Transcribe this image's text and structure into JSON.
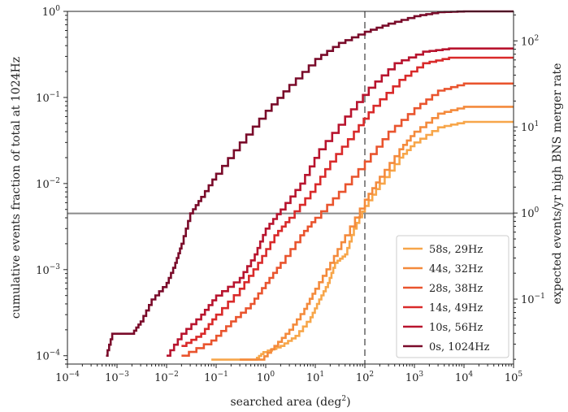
{
  "chart_data": {
    "type": "line",
    "title": "",
    "xlabel_main": "searched area (deg",
    "xlabel_exp": "2",
    "xlabel_tail": ")",
    "ylabel": "cumulative events fraction of total at 1024Hz",
    "ylabel_right": "expected events/yr high BNS merger rate",
    "xscale": "log",
    "yscale": "log",
    "xlim": [
      0.0001,
      100000
    ],
    "ylim": [
      8e-05,
      1
    ],
    "ylim_right": [
      0.0176,
      220
    ],
    "x_ticks": [
      {
        "value": 0.0001,
        "base": "10",
        "exp": "−4"
      },
      {
        "value": 0.001,
        "base": "10",
        "exp": "−3"
      },
      {
        "value": 0.01,
        "base": "10",
        "exp": "−2"
      },
      {
        "value": 0.1,
        "base": "10",
        "exp": "−1"
      },
      {
        "value": 1,
        "base": "10",
        "exp": "0"
      },
      {
        "value": 10,
        "base": "10",
        "exp": "1"
      },
      {
        "value": 100,
        "base": "10",
        "exp": "2"
      },
      {
        "value": 1000,
        "base": "10",
        "exp": "3"
      },
      {
        "value": 10000,
        "base": "10",
        "exp": "4"
      },
      {
        "value": 100000,
        "base": "10",
        "exp": "5"
      }
    ],
    "y_ticks": [
      {
        "value": 0.0001,
        "base": "10",
        "exp": "−4"
      },
      {
        "value": 0.001,
        "base": "10",
        "exp": "−3"
      },
      {
        "value": 0.01,
        "base": "10",
        "exp": "−2"
      },
      {
        "value": 0.1,
        "base": "10",
        "exp": "−1"
      },
      {
        "value": 1,
        "base": "10",
        "exp": "0"
      }
    ],
    "y_right_ticks": [
      {
        "value": 0.1,
        "base": "10",
        "exp": "−1"
      },
      {
        "value": 1,
        "base": "10",
        "exp": "0"
      },
      {
        "value": 10,
        "base": "10",
        "exp": "1"
      },
      {
        "value": 100,
        "base": "10",
        "exp": "2"
      }
    ],
    "reference_lines": {
      "horizontal_y": 0.0045,
      "vertical_x": 100
    },
    "legend_position": "lower-right",
    "series": [
      {
        "name": "58s, 29Hz",
        "color": "#f7a64a",
        "points": [
          [
            0.08,
            9e-05
          ],
          [
            0.3,
            9e-05
          ],
          [
            0.6,
            9e-05
          ],
          [
            0.9,
            0.00011
          ],
          [
            2,
            0.00013
          ],
          [
            4,
            0.00017
          ],
          [
            8,
            0.00028
          ],
          [
            12,
            0.00045
          ],
          [
            18,
            0.0007
          ],
          [
            25,
            0.0012
          ],
          [
            40,
            0.0015
          ],
          [
            60,
            0.003
          ],
          [
            100,
            0.0055
          ],
          [
            200,
            0.01
          ],
          [
            500,
            0.02
          ],
          [
            1000,
            0.03
          ],
          [
            3000,
            0.045
          ],
          [
            10000,
            0.052
          ],
          [
            100000,
            0.052
          ]
        ]
      },
      {
        "name": "44s, 32Hz",
        "color": "#f48a3c",
        "points": [
          [
            0.3,
            9e-05
          ],
          [
            0.8,
            9e-05
          ],
          [
            1.5,
            0.00013
          ],
          [
            3,
            0.0002
          ],
          [
            6,
            0.00035
          ],
          [
            10,
            0.0006
          ],
          [
            20,
            0.0012
          ],
          [
            40,
            0.0025
          ],
          [
            100,
            0.0065
          ],
          [
            200,
            0.012
          ],
          [
            500,
            0.025
          ],
          [
            1000,
            0.04
          ],
          [
            3000,
            0.065
          ],
          [
            10000,
            0.078
          ],
          [
            100000,
            0.078
          ]
        ]
      },
      {
        "name": "28s, 38Hz",
        "color": "#e9542e",
        "points": [
          [
            0.02,
            0.0001
          ],
          [
            0.08,
            0.00015
          ],
          [
            0.2,
            0.00025
          ],
          [
            0.5,
            0.0004
          ],
          [
            1,
            0.0007
          ],
          [
            2,
            0.0012
          ],
          [
            5,
            0.0025
          ],
          [
            10,
            0.004
          ],
          [
            30,
            0.008
          ],
          [
            100,
            0.018
          ],
          [
            300,
            0.04
          ],
          [
            1000,
            0.075
          ],
          [
            3000,
            0.12
          ],
          [
            10000,
            0.145
          ],
          [
            100000,
            0.145
          ]
        ]
      },
      {
        "name": "14s, 49Hz",
        "color": "#d92a2a",
        "points": [
          [
            0.02,
            0.00013
          ],
          [
            0.05,
            0.00018
          ],
          [
            0.1,
            0.0003
          ],
          [
            0.3,
            0.0006
          ],
          [
            0.7,
            0.0012
          ],
          [
            1.5,
            0.0025
          ],
          [
            3,
            0.004
          ],
          [
            8,
            0.008
          ],
          [
            20,
            0.018
          ],
          [
            60,
            0.04
          ],
          [
            150,
            0.08
          ],
          [
            500,
            0.16
          ],
          [
            1500,
            0.25
          ],
          [
            5000,
            0.29
          ],
          [
            100000,
            0.29
          ]
        ]
      },
      {
        "name": "10s, 56Hz",
        "color": "#b8142e",
        "points": [
          [
            0.01,
            0.0001
          ],
          [
            0.02,
            0.00018
          ],
          [
            0.05,
            0.0003
          ],
          [
            0.1,
            0.0005
          ],
          [
            0.3,
            0.0008
          ],
          [
            0.6,
            0.0015
          ],
          [
            1,
            0.003
          ],
          [
            2,
            0.005
          ],
          [
            5,
            0.01
          ],
          [
            12,
            0.025
          ],
          [
            40,
            0.06
          ],
          [
            120,
            0.13
          ],
          [
            400,
            0.25
          ],
          [
            1500,
            0.34
          ],
          [
            5000,
            0.37
          ],
          [
            100000,
            0.37
          ]
        ]
      },
      {
        "name": "0s, 1024Hz",
        "color": "#7a0b2a",
        "points": [
          [
            0.0006,
            0.0001
          ],
          [
            0.0008,
            0.00018
          ],
          [
            0.002,
            0.00018
          ],
          [
            0.003,
            0.00025
          ],
          [
            0.005,
            0.00045
          ],
          [
            0.01,
            0.0007
          ],
          [
            0.015,
            0.0012
          ],
          [
            0.02,
            0.002
          ],
          [
            0.03,
            0.0045
          ],
          [
            0.05,
            0.007
          ],
          [
            0.1,
            0.013
          ],
          [
            0.3,
            0.03
          ],
          [
            1,
            0.07
          ],
          [
            3,
            0.14
          ],
          [
            10,
            0.28
          ],
          [
            30,
            0.43
          ],
          [
            100,
            0.58
          ],
          [
            300,
            0.72
          ],
          [
            1000,
            0.88
          ],
          [
            3000,
            0.98
          ],
          [
            10000,
            1
          ],
          [
            100000,
            1
          ]
        ]
      }
    ]
  }
}
